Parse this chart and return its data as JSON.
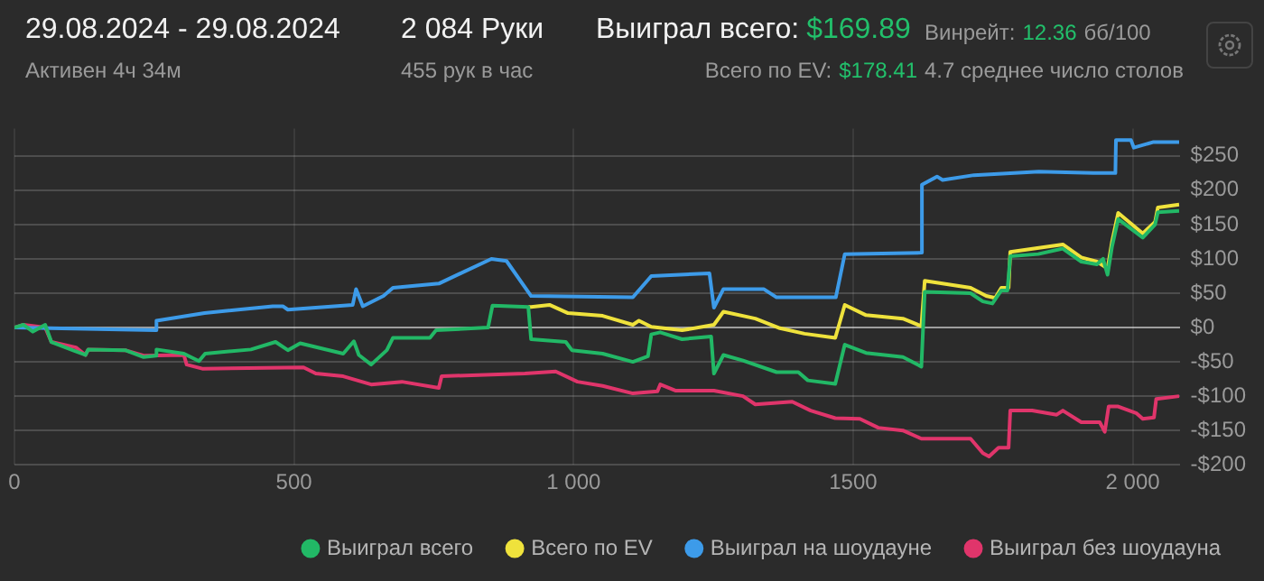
{
  "chart_data": {
    "type": "line",
    "title": "29.08.2024 - 29.08.2024",
    "subtitle": "Активен 4ч 34м",
    "annotations": [
      "2 084 Руки",
      "455 рук в час",
      "Выиграл всего:",
      "$169.89",
      "Всего по EV:",
      "$178.41",
      "Винрейт:",
      "12.36",
      "бб/100",
      "4.7 среднее число столов"
    ],
    "xlim": [
      0,
      2084
    ],
    "ylim": [
      -200,
      290
    ],
    "xticks": [
      0,
      500,
      {
        "value": 1000,
        "label": "1 000"
      },
      1500,
      {
        "value": 2000,
        "label": "2 000"
      }
    ],
    "yticks": [
      {
        "value": -200,
        "label": "-$200"
      },
      {
        "value": -150,
        "label": "-$150"
      },
      {
        "value": -100,
        "label": "-$100"
      },
      {
        "value": -50,
        "label": "-$50"
      },
      {
        "value": 0,
        "label": "$0"
      },
      {
        "value": 50,
        "label": "$50"
      },
      {
        "value": 100,
        "label": "$100"
      },
      {
        "value": 150,
        "label": "$150"
      },
      {
        "value": 200,
        "label": "$200"
      },
      {
        "value": 250,
        "label": "$250"
      }
    ],
    "grid": true,
    "legend": "bottom right",
    "marker": "none",
    "line_style": "solid",
    "series": [
      {
        "name": "Выиграл всего",
        "color": "#22b866",
        "x": [
          0,
          16,
          33,
          55,
          66,
          104,
          127,
          132,
          198,
          231,
          253,
          254,
          303,
          330,
          341,
          423,
          467,
          489,
          511,
          588,
          607,
          616,
          638,
          666,
          677,
          743,
          754,
          847,
          855,
          919,
          924,
          986,
          997,
          1052,
          1106,
          1133,
          1139,
          1155,
          1194,
          1246,
          1251,
          1268,
          1303,
          1363,
          1402,
          1419,
          1468,
          1485,
          1523,
          1589,
          1622,
          1628,
          1710,
          1732,
          1749,
          1765,
          1776,
          1781,
          1831,
          1875,
          1908,
          1936,
          1947,
          1955,
          1963,
          1974,
          2018,
          2040,
          2045,
          2083
        ],
        "values": [
          0,
          4,
          -6,
          4,
          -21,
          -33,
          -40,
          -32,
          -33,
          -43,
          -41,
          -32,
          -38,
          -49,
          -38,
          -32,
          -21,
          -33,
          -23,
          -38,
          -20,
          -40,
          -54,
          -33,
          -15,
          -15,
          -4,
          0,
          32,
          30,
          -17,
          -21,
          -33,
          -38,
          -50,
          -42,
          -10,
          -7,
          -17,
          -13,
          -67,
          -40,
          -48,
          -65,
          -65,
          -77,
          -82,
          -25,
          -37,
          -43,
          -57,
          52,
          50,
          38,
          35,
          54,
          54,
          104,
          107,
          115,
          96,
          92,
          100,
          77,
          118,
          158,
          131,
          150,
          168,
          170
        ]
      },
      {
        "name": "Всего по EV",
        "color": "#efe23c",
        "x": [
          919,
          924,
          957,
          990,
          1052,
          1106,
          1117,
          1139,
          1194,
          1251,
          1268,
          1325,
          1369,
          1413,
          1468,
          1485,
          1523,
          1589,
          1622,
          1628,
          1710,
          1738,
          1754,
          1765,
          1778,
          1781,
          1875,
          1908,
          1936,
          1955,
          1963,
          1974,
          2018,
          2040,
          2045,
          2083
        ],
        "values": [
          30,
          30,
          33,
          21,
          17,
          4,
          10,
          1,
          -4,
          4,
          23,
          13,
          -1,
          -9,
          -15,
          33,
          18,
          13,
          2,
          68,
          58,
          46,
          43,
          58,
          58,
          110,
          121,
          102,
          96,
          86,
          125,
          167,
          137,
          154,
          175,
          179
        ]
      },
      {
        "name": "Выиграл на шоудауне",
        "color": "#3d9be9",
        "x": [
          0,
          253,
          254,
          340,
          462,
          480,
          489,
          605,
          611,
          623,
          660,
          677,
          759,
          853,
          880,
          924,
          1106,
          1139,
          1243,
          1251,
          1268,
          1340,
          1363,
          1469,
          1485,
          1622,
          1623,
          1650,
          1660,
          1716,
          1832,
          1930,
          1969,
          1970,
          1997,
          2002,
          2036,
          2083
        ],
        "values": [
          0,
          -4,
          10,
          21,
          31,
          31,
          26,
          33,
          56,
          31,
          46,
          58,
          64,
          100,
          97,
          46,
          44,
          75,
          79,
          29,
          56,
          56,
          44,
          44,
          107,
          109,
          208,
          220,
          215,
          222,
          227,
          225,
          225,
          273,
          273,
          262,
          270,
          270
        ]
      },
      {
        "name": "Выиграл без шоудауна",
        "color": "#e0356b",
        "x": [
          0,
          16,
          55,
          66,
          110,
          127,
          132,
          198,
          231,
          303,
          308,
          336,
          517,
          539,
          588,
          638,
          693,
          759,
          764,
          913,
          968,
          1007,
          1052,
          1106,
          1150,
          1155,
          1183,
          1251,
          1303,
          1325,
          1391,
          1424,
          1468,
          1512,
          1545,
          1589,
          1622,
          1710,
          1732,
          1743,
          1760,
          1778,
          1781,
          1820,
          1864,
          1875,
          1908,
          1941,
          1950,
          1957,
          1974,
          2007,
          2018,
          2038,
          2042,
          2083
        ],
        "values": [
          0,
          4,
          0,
          -21,
          -29,
          -40,
          -32,
          -33,
          -41,
          -40,
          -54,
          -60,
          -58,
          -67,
          -71,
          -83,
          -79,
          -88,
          -71,
          -67,
          -64,
          -79,
          -85,
          -96,
          -93,
          -83,
          -92,
          -92,
          -100,
          -112,
          -108,
          -121,
          -132,
          -133,
          -146,
          -150,
          -162,
          -162,
          -183,
          -188,
          -175,
          -175,
          -121,
          -121,
          -127,
          -121,
          -138,
          -138,
          -152,
          -115,
          -115,
          -125,
          -133,
          -131,
          -104,
          -100
        ]
      }
    ]
  }
}
